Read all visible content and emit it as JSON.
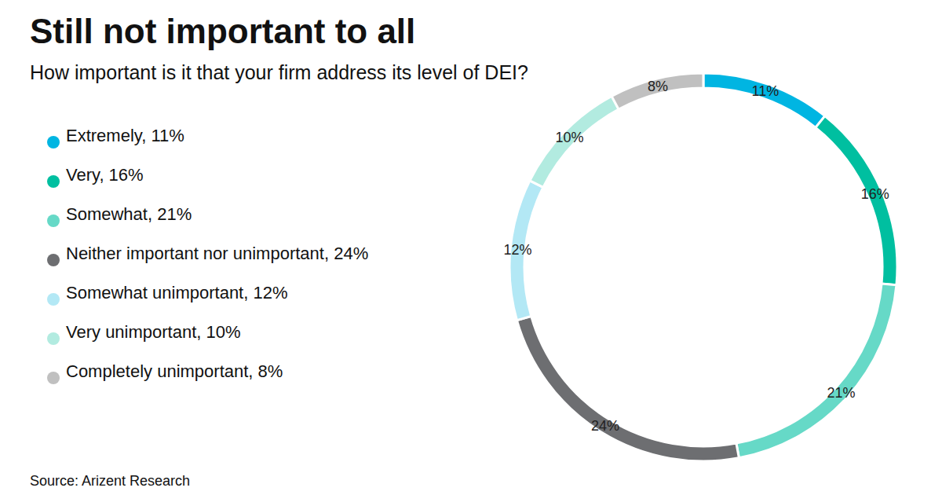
{
  "chart_data": {
    "type": "pie",
    "title": "Still not important to all",
    "subtitle": "How important is it that your firm address its level of DEI?",
    "source": "Source: Arizent Research",
    "categories": [
      "Extremely, 11%",
      "Very, 16%",
      "Somewhat, 21%",
      "Neither important nor unimportant, 24%",
      "Somewhat unimportant, 12%",
      "Very unimportant, 10%",
      "Completely unimportant, 8%"
    ],
    "values": [
      11,
      16,
      21,
      24,
      12,
      10,
      8
    ],
    "value_labels": [
      "11%",
      "16%",
      "21%",
      "24%",
      "12%",
      "10%",
      "8%"
    ],
    "colors": [
      "#00b5e2",
      "#00bfa0",
      "#66d9c7",
      "#6d6e71",
      "#b3e8f5",
      "#b2ebe0",
      "#c0c0c0"
    ],
    "data_labels": true,
    "legend": "left"
  }
}
